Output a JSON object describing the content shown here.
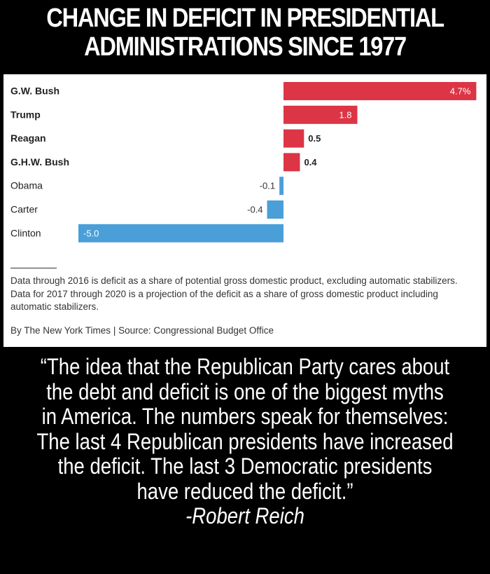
{
  "headline": {
    "line1": "CHANGE IN DEFICIT IN PRESIDENTIAL",
    "line2": "ADMINISTRATIONS SINCE 1977"
  },
  "chart_data": {
    "type": "bar",
    "orientation": "horizontal",
    "categories": [
      "G.W. Bush",
      "Trump",
      "Reagan",
      "G.H.W. Bush",
      "Obama",
      "Carter",
      "Clinton"
    ],
    "values": [
      4.7,
      1.8,
      0.5,
      0.4,
      -0.1,
      -0.4,
      -5.0
    ],
    "labels": [
      "4.7%",
      "1.8",
      "0.5",
      "0.4",
      "-0.1",
      "-0.4",
      "-5.0"
    ],
    "bold_categories": [
      "G.W. Bush",
      "Trump",
      "Reagan",
      "G.H.W. Bush"
    ],
    "positive_color": "#dc3545",
    "negative_color": "#4a9fd8",
    "xlim": [
      -5.0,
      4.7
    ],
    "title": "",
    "xlabel": "",
    "ylabel": ""
  },
  "footnote": "Data through 2016 is deficit as a share of potential gross domestic product, excluding automatic stabilizers. Data for 2017 through 2020 is a projection of the deficit as a share of gross domestic product including automatic stabilizers.",
  "credit": "By The New York Times | Source: Congressional Budget Office",
  "quote": {
    "lines": [
      "“The idea that the Republican Party cares about",
      "the debt and deficit is one of the biggest myths",
      "in America. The numbers speak for themselves:",
      "The last 4 Republican presidents have increased",
      "the deficit. The last 3 Democratic presidents",
      "have reduced the deficit.”"
    ],
    "author": "-Robert Reich"
  }
}
